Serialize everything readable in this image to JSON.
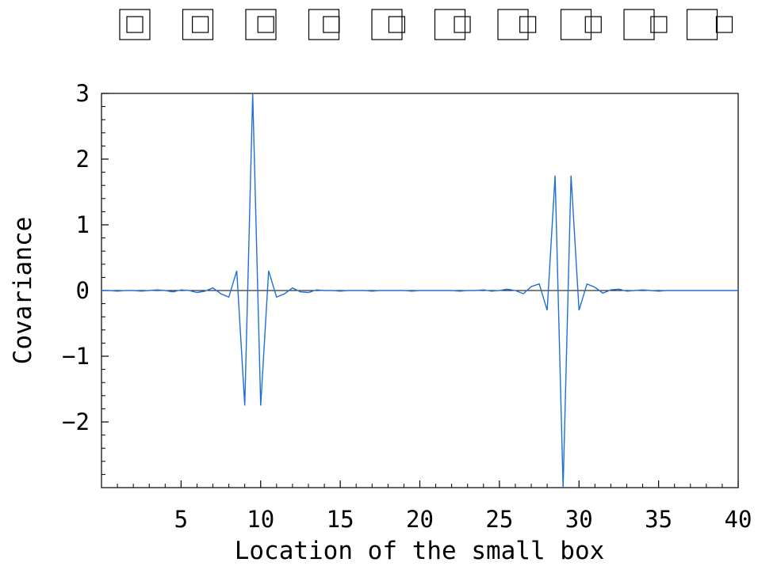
{
  "chart_data": {
    "type": "line",
    "title": "",
    "xlabel": "Location of the small box",
    "ylabel": "Covariance",
    "xlim": [
      0,
      40
    ],
    "ylim": [
      -3,
      3
    ],
    "xticks": [
      5,
      10,
      15,
      20,
      25,
      30,
      35,
      40
    ],
    "yticks": [
      -2,
      -1,
      0,
      1,
      2,
      3
    ],
    "xtick_labels": [
      "5",
      "10",
      "15",
      "20",
      "25",
      "30",
      "35",
      "40"
    ],
    "ytick_labels": [
      "−2",
      "−1",
      "0",
      "1",
      "2",
      "3"
    ],
    "grid": false,
    "zero_line": true,
    "line_color": "#1f6fd6",
    "series": [
      {
        "x": [
          0,
          0.5,
          1,
          1.5,
          2,
          2.5,
          3,
          3.5,
          4,
          4.5,
          5,
          5.5,
          6,
          6.5,
          7,
          7.5,
          8,
          8.5,
          9,
          9.5,
          10,
          10.5,
          11,
          11.5,
          12,
          12.5,
          13,
          13.5,
          14,
          14.5,
          15,
          15.5,
          16,
          16.5,
          17,
          17.5,
          18,
          18.5,
          19,
          19.5,
          20,
          20.5,
          21,
          21.5,
          22,
          22.5,
          23,
          23.5,
          24,
          24.5,
          25,
          25.5,
          26,
          26.5,
          27,
          27.5,
          28,
          28.5,
          29,
          29.5,
          30,
          30.5,
          31,
          31.5,
          32,
          32.5,
          33,
          33.5,
          34,
          34.5,
          35,
          35.5,
          36,
          36.5,
          37,
          37.5,
          38,
          38.5,
          39,
          39.5,
          40
        ],
        "y": [
          0,
          0,
          -0.01,
          0,
          0,
          -0.01,
          0,
          0.01,
          0,
          -0.02,
          0.01,
          0,
          -0.03,
          -0.01,
          0.04,
          -0.05,
          -0.1,
          0.3,
          -1.75,
          3.0,
          -1.75,
          0.3,
          -0.1,
          -0.05,
          0.04,
          -0.02,
          -0.03,
          0.01,
          0,
          0,
          -0.01,
          0,
          0,
          0,
          -0.01,
          0,
          0,
          0,
          0,
          -0.01,
          0,
          0,
          0,
          0,
          0,
          -0.01,
          0,
          0,
          0.01,
          -0.01,
          0,
          0.02,
          0,
          -0.05,
          0.06,
          0.1,
          -0.3,
          1.75,
          -3.0,
          1.75,
          -0.3,
          0.1,
          0.05,
          -0.04,
          0.01,
          0.02,
          -0.01,
          0,
          0.01,
          0,
          -0.01,
          0,
          0,
          0,
          0,
          0,
          0,
          0,
          0,
          0,
          0
        ]
      }
    ]
  },
  "legend_icons": {
    "count": 10,
    "icon_name": "nested-squares-icon",
    "small_box_step": 0.111
  }
}
